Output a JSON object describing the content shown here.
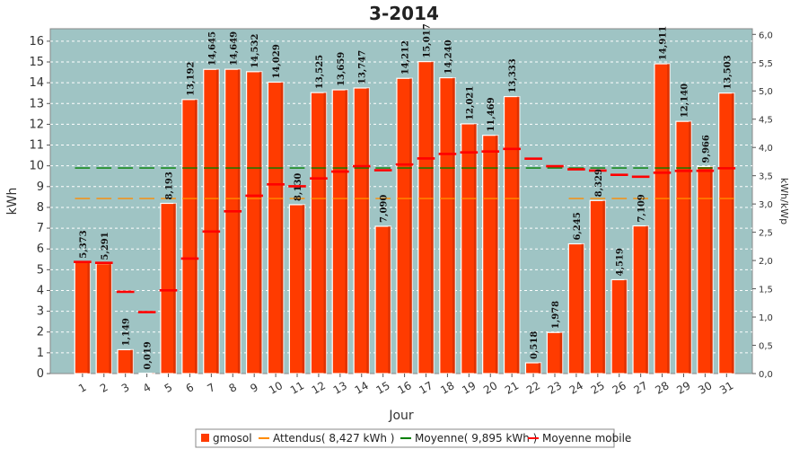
{
  "chart_data": {
    "type": "bar",
    "title": "3-2014",
    "xlabel": "Jour",
    "ylabel": "kWh",
    "ylabel_right": "kWh/kWp",
    "ylim": [
      0,
      16.6
    ],
    "ylim_right": [
      0,
      6.1
    ],
    "yticks": [
      "0",
      "1",
      "2",
      "3",
      "4",
      "5",
      "6",
      "7",
      "8",
      "9",
      "10",
      "11",
      "12",
      "13",
      "14",
      "15",
      "16"
    ],
    "yticks_right": [
      "0,0",
      "0,5",
      "1,0",
      "1,5",
      "2,0",
      "2,5",
      "3,0",
      "3,5",
      "4,0",
      "4,5",
      "5,0",
      "5,5",
      "6,0"
    ],
    "categories": [
      "1",
      "2",
      "3",
      "4",
      "5",
      "6",
      "7",
      "8",
      "9",
      "10",
      "11",
      "12",
      "13",
      "14",
      "15",
      "16",
      "17",
      "18",
      "19",
      "20",
      "21",
      "22",
      "23",
      "24",
      "25",
      "26",
      "27",
      "28",
      "29",
      "30",
      "31"
    ],
    "series": [
      {
        "name": "gmosol",
        "color": "#ff3b00",
        "values": [
          5.373,
          5.291,
          1.149,
          0.019,
          8.193,
          13.192,
          14.645,
          14.649,
          14.532,
          14.029,
          8.13,
          13.525,
          13.659,
          13.747,
          7.09,
          14.212,
          15.017,
          14.24,
          12.021,
          11.469,
          13.333,
          0.518,
          1.978,
          6.245,
          8.329,
          4.519,
          7.109,
          14.911,
          12.14,
          9.966,
          13.503
        ],
        "labels": [
          "5,373",
          "5,291",
          "1,149",
          "0,019",
          "8,193",
          "13,192",
          "14,645",
          "14,649",
          "14,532",
          "14,029",
          "8,130",
          "13,525",
          "13,659",
          "13,747",
          "7,090",
          "14,212",
          "15,017",
          "14,240",
          "12,021",
          "11,469",
          "13,333",
          "0,518",
          "1,978",
          "6,245",
          "8,329",
          "4,519",
          "7,109",
          "14,911",
          "12,140",
          "9,966",
          "13,503"
        ]
      },
      {
        "name": "Attendus( 8,427 kWh )",
        "color": "#ff8c00",
        "value": 8.427,
        "gap_categories": [
          "22",
          "23"
        ]
      },
      {
        "name": "Moyenne( 9,895 kWh )",
        "color": "#008000",
        "value": 9.895
      },
      {
        "name": "Moyenne mobile",
        "color": "#ff0000",
        "values": [
          5.373,
          5.332,
          3.938,
          2.958,
          4.005,
          5.536,
          6.837,
          7.813,
          8.56,
          9.107,
          9.018,
          9.394,
          9.722,
          9.983,
          9.79,
          10.066,
          10.357,
          10.573,
          10.649,
          10.689,
          10.815,
          10.347,
          9.983,
          9.831,
          9.771,
          9.569,
          9.477,
          9.671,
          9.755,
          9.762,
          9.883
        ]
      }
    ],
    "legend_position": "bottom",
    "grid": true,
    "background": "#9fc4c4"
  }
}
